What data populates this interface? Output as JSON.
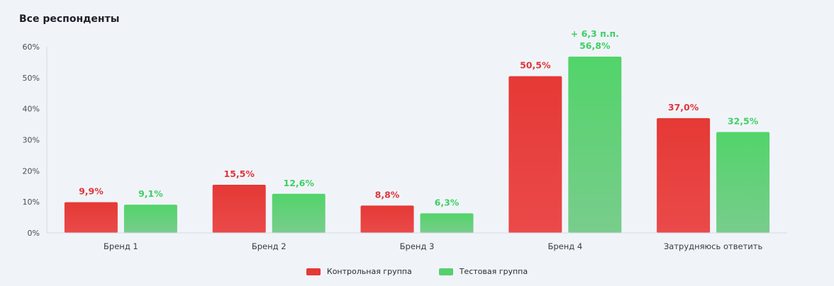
{
  "title": "Все респонденты",
  "chart_data": {
    "type": "bar",
    "categories": [
      "Бренд 1",
      "Бренд 2",
      "Бренд 3",
      "Бренд 4",
      "Затрудняюсь ответить"
    ],
    "series": [
      {
        "name": "Контрольная группа",
        "values": [
          9.9,
          15.5,
          8.8,
          50.5,
          37.0
        ],
        "labels": [
          "9,9%",
          "15,5%",
          "8,8%",
          "50,5%",
          "37,0%"
        ],
        "color": "#e53935",
        "label_color": "#e0353c"
      },
      {
        "name": "Тестовая группа",
        "values": [
          9.1,
          12.6,
          6.3,
          56.8,
          32.5
        ],
        "labels": [
          "9,1%",
          "12,6%",
          "6,3%",
          "56,8%",
          "32,5%"
        ],
        "color": "#57cf6f",
        "label_color": "#3fcf66"
      }
    ],
    "ylim": [
      0,
      60
    ],
    "yticks": [
      0,
      10,
      20,
      30,
      40,
      50,
      60
    ],
    "ytick_labels": [
      "0%",
      "10%",
      "20%",
      "30%",
      "40%",
      "50%",
      "60%"
    ],
    "annotations": [
      {
        "category_index": 3,
        "series_index": 1,
        "text": "+ 6,3 п.п."
      }
    ],
    "legend_position": "bottom-center",
    "grid": false
  }
}
